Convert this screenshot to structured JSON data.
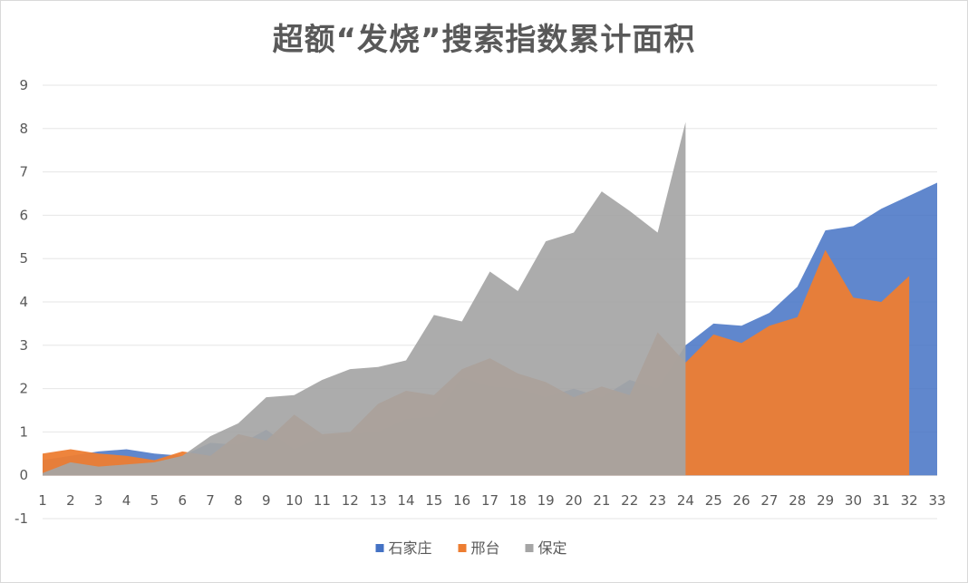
{
  "chart_data": {
    "type": "area",
    "title": "超额“发烧”搜索指数累计面积",
    "xlabel": "",
    "ylabel": "",
    "x": [
      1,
      2,
      3,
      4,
      5,
      6,
      7,
      8,
      9,
      10,
      11,
      12,
      13,
      14,
      15,
      16,
      17,
      18,
      19,
      20,
      21,
      22,
      23,
      24,
      25,
      26,
      27,
      28,
      29,
      30,
      31,
      32,
      33
    ],
    "ylim": [
      -1,
      9
    ],
    "yticks": [
      -1,
      0,
      1,
      2,
      3,
      4,
      5,
      6,
      7,
      8,
      9
    ],
    "grid": true,
    "legend_position": "bottom",
    "series": [
      {
        "name": "石家庄",
        "color": "#4472c4",
        "values": [
          0.35,
          0.45,
          0.55,
          0.6,
          0.5,
          0.45,
          0.75,
          0.7,
          1.05,
          0.6,
          0.9,
          0.95,
          1.0,
          1.3,
          1.35,
          2.25,
          2.05,
          2.0,
          1.8,
          2.0,
          1.8,
          2.2,
          2.0,
          3.0,
          3.5,
          3.45,
          3.75,
          4.35,
          5.65,
          5.75,
          6.15,
          6.45,
          6.75
        ]
      },
      {
        "name": "邢台",
        "color": "#ed7d31",
        "values": [
          0.5,
          0.6,
          0.5,
          0.45,
          0.35,
          0.55,
          0.45,
          0.95,
          0.8,
          1.4,
          0.95,
          1.0,
          1.65,
          1.95,
          1.85,
          2.45,
          2.7,
          2.35,
          2.15,
          1.8,
          2.05,
          1.85,
          3.3,
          2.6,
          3.25,
          3.05,
          3.45,
          3.65,
          5.2,
          4.1,
          4.0,
          4.6,
          null
        ]
      },
      {
        "name": "保定",
        "color": "#a5a5a5",
        "values": [
          0.05,
          0.3,
          0.2,
          0.25,
          0.3,
          0.45,
          0.9,
          1.2,
          1.8,
          1.85,
          2.2,
          2.45,
          2.5,
          2.65,
          3.7,
          3.55,
          4.7,
          4.25,
          5.4,
          5.6,
          6.55,
          6.1,
          5.6,
          8.15,
          null,
          null,
          null,
          null,
          null,
          null,
          null,
          null,
          null
        ]
      }
    ]
  }
}
